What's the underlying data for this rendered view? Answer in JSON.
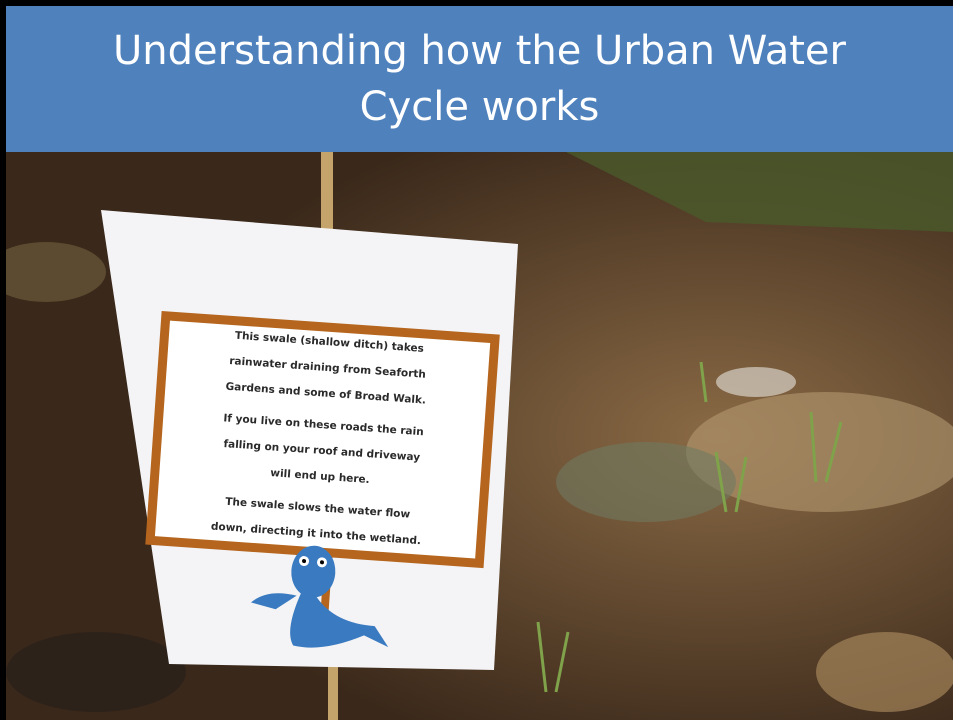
{
  "title": "Understanding how the Urban Water Cycle works",
  "sign": {
    "lines": [
      "This swale (shallow ditch) takes",
      "rainwater draining from Seaforth",
      "Gardens and some of Broad Walk.",
      "If you live on these roads the rain",
      "falling on your roof and driveway",
      "will end up here.",
      "The swale slows the water flow",
      "down, directing it into the wetland."
    ]
  }
}
